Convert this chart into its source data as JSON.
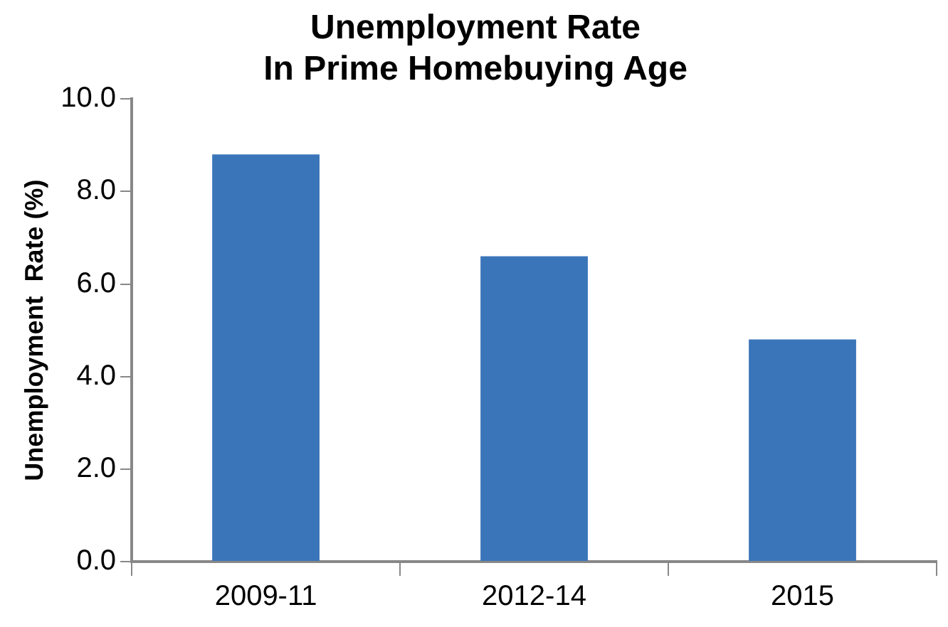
{
  "chart_data": {
    "type": "bar",
    "title": "Unemployment Rate\nIn Prime Homebuying Age",
    "ylabel": "Unemployment  Rate (%)",
    "categories": [
      "2009-11",
      "2012-14",
      "2015"
    ],
    "values": [
      8.8,
      6.6,
      4.8
    ],
    "color": "#3a75b9",
    "ylim": [
      0,
      10
    ],
    "yticks": [
      {
        "value": 0,
        "label": "0.0"
      },
      {
        "value": 2,
        "label": "2.0"
      },
      {
        "value": 4,
        "label": "4.0"
      },
      {
        "value": 6,
        "label": "6.0"
      },
      {
        "value": 8,
        "label": "8.0"
      },
      {
        "value": 10,
        "label": "10.0"
      }
    ],
    "grid": false,
    "legend": false
  }
}
